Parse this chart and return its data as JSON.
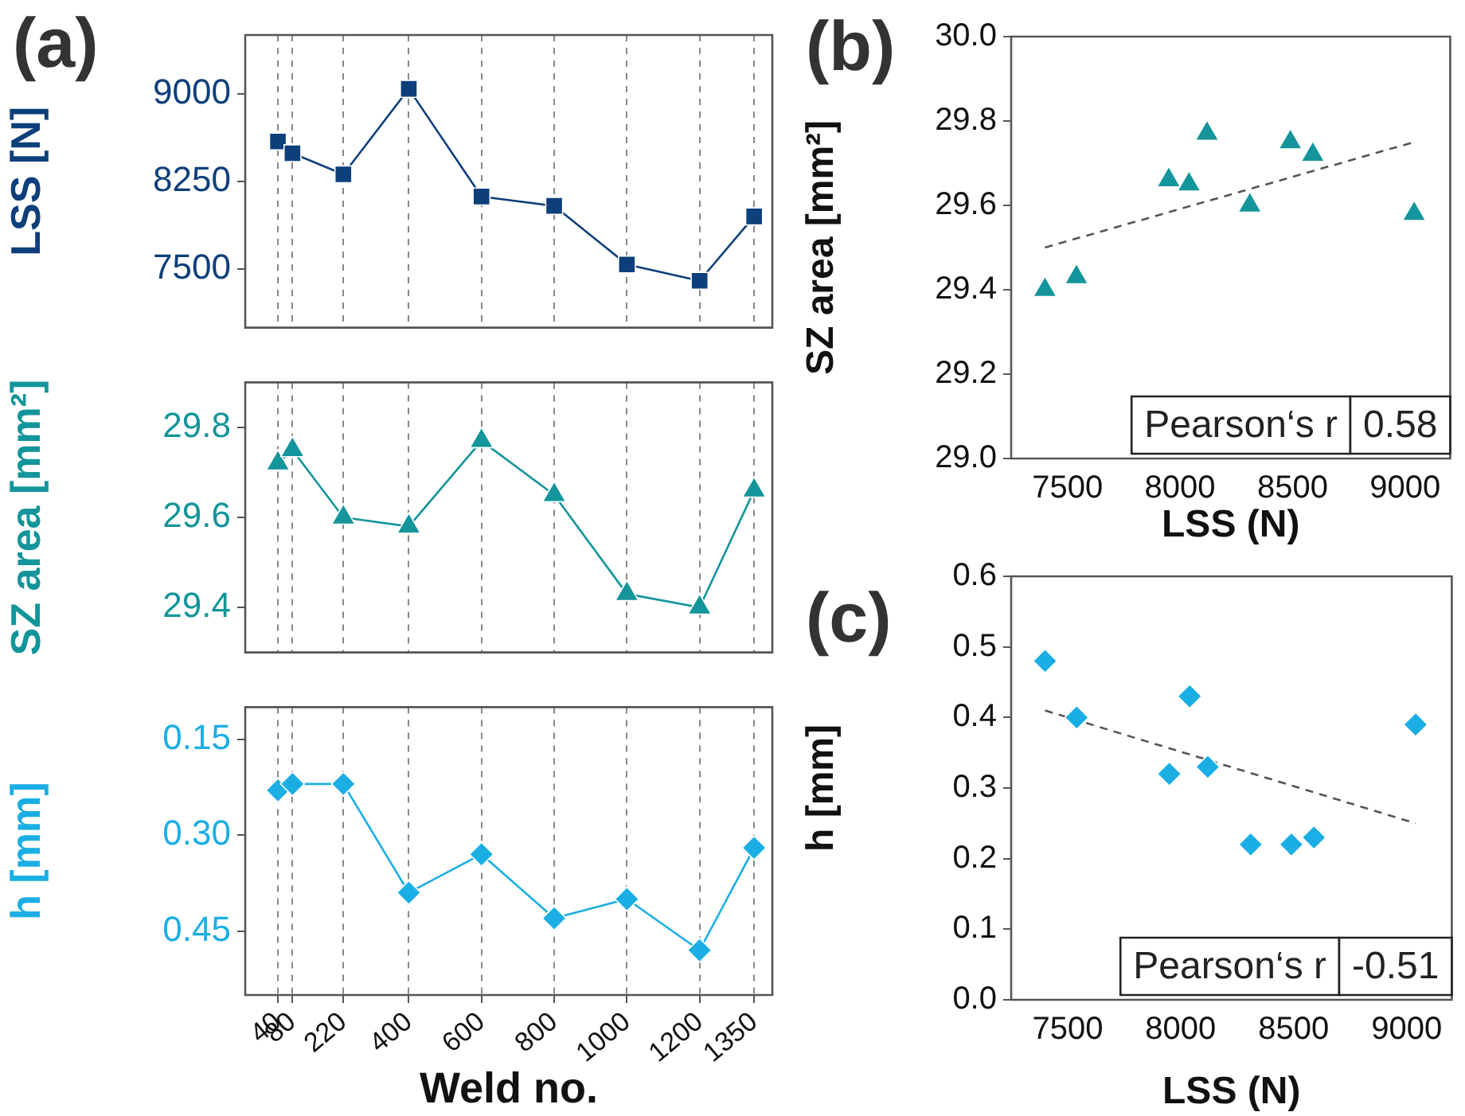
{
  "chart_data": [
    {
      "type": "line",
      "title": "(a)",
      "ylabel": "LSS [N]",
      "x": [
        40,
        80,
        220,
        400,
        600,
        800,
        1000,
        1200,
        1350
      ],
      "series": [
        {
          "color": "#0d3f7a",
          "marker": "square",
          "values": [
            8590,
            8490,
            8310,
            9040,
            8120,
            8040,
            7540,
            7400,
            7950
          ]
        }
      ],
      "xlim": [
        -50,
        1400
      ],
      "xticks": [
        40,
        80,
        220,
        400,
        600,
        800,
        1000,
        1200,
        1350
      ],
      "ylim": [
        7000,
        9500
      ],
      "yticks": [
        7500,
        8250,
        9000
      ],
      "grid": "x",
      "tick_labels": "y"
    },
    {
      "type": "line",
      "ylabel": "SZ area [mm²]",
      "x": [
        40,
        80,
        220,
        400,
        600,
        800,
        1000,
        1200,
        1350
      ],
      "series": [
        {
          "color": "#13959b",
          "marker": "triangle",
          "values": [
            29.72,
            29.75,
            29.6,
            29.58,
            29.77,
            29.65,
            29.43,
            29.4,
            29.66
          ]
        }
      ],
      "xlim": [
        -50,
        1400
      ],
      "xticks": [
        40,
        80,
        220,
        400,
        600,
        800,
        1000,
        1200,
        1350
      ],
      "ylim": [
        29.3,
        29.9
      ],
      "yticks": [
        29.4,
        29.6,
        29.8
      ],
      "grid": "x",
      "tick_labels": "y"
    },
    {
      "type": "line",
      "xlabel": "Weld no.",
      "ylabel": "h [mm]",
      "x": [
        40,
        80,
        220,
        400,
        600,
        800,
        1000,
        1200,
        1350
      ],
      "series": [
        {
          "color": "#1aaee5",
          "marker": "diamond",
          "values": [
            0.23,
            0.22,
            0.22,
            0.39,
            0.33,
            0.43,
            0.4,
            0.48,
            0.32
          ]
        }
      ],
      "xlim": [
        -50,
        1400
      ],
      "xticks": [
        40,
        80,
        220,
        400,
        600,
        800,
        1000,
        1200,
        1350
      ],
      "ylim": [
        0.55,
        0.1
      ],
      "yticks": [
        0.15,
        {
          "value": 0.3,
          "label": "0.30"
        },
        0.45
      ],
      "grid": "x"
    },
    {
      "type": "scatter",
      "title": "(b)",
      "xlabel": "LSS (N)",
      "ylabel": "SZ area [mm²]",
      "annotations": [
        "Pearson‘s r",
        "0.58"
      ],
      "series": [
        {
          "type": "scatter",
          "color": "#13959b",
          "marker": "triangle",
          "x": [
            7400,
            7540,
            7950,
            8040,
            8120,
            8310,
            8490,
            8590,
            9040
          ],
          "values": [
            29.4,
            29.43,
            29.66,
            29.65,
            29.77,
            29.6,
            29.75,
            29.72,
            29.58
          ]
        },
        {
          "type": "line",
          "color": "#555555",
          "marker": "none",
          "line_style": "dashed",
          "x": [
            7400,
            9040
          ],
          "values": [
            29.5,
            29.75
          ]
        }
      ],
      "xlim": [
        7250,
        9200
      ],
      "xticks": [
        7500,
        8000,
        8500,
        9000
      ],
      "ylim": [
        29,
        30
      ],
      "yticks": [
        {
          "value": 29,
          "label": "29.0"
        },
        29.2,
        29.4,
        29.6,
        29.8,
        {
          "value": 30,
          "label": "30.0"
        }
      ]
    },
    {
      "type": "scatter",
      "title": "(c)",
      "xlabel": "LSS (N)",
      "ylabel": "h [mm]",
      "annotations": [
        "Pearson‘s r",
        "-0.51"
      ],
      "series": [
        {
          "type": "scatter",
          "color": "#1aaee5",
          "marker": "diamond",
          "x": [
            7400,
            7540,
            7950,
            8040,
            8120,
            8310,
            8490,
            8590,
            9040
          ],
          "values": [
            0.48,
            0.4,
            0.32,
            0.43,
            0.33,
            0.22,
            0.22,
            0.23,
            0.39
          ]
        },
        {
          "type": "line",
          "color": "#555555",
          "marker": "none",
          "line_style": "dashed",
          "x": [
            7400,
            9040
          ],
          "values": [
            0.41,
            0.25
          ]
        }
      ],
      "xlim": [
        7250,
        9200
      ],
      "xticks": [
        7500,
        8000,
        8500,
        9000
      ],
      "ylim": [
        0,
        0.6
      ],
      "yticks": [
        {
          "value": 0,
          "label": "0.0"
        },
        0.1,
        0.2,
        0.3,
        0.4,
        0.5,
        0.6
      ]
    }
  ]
}
